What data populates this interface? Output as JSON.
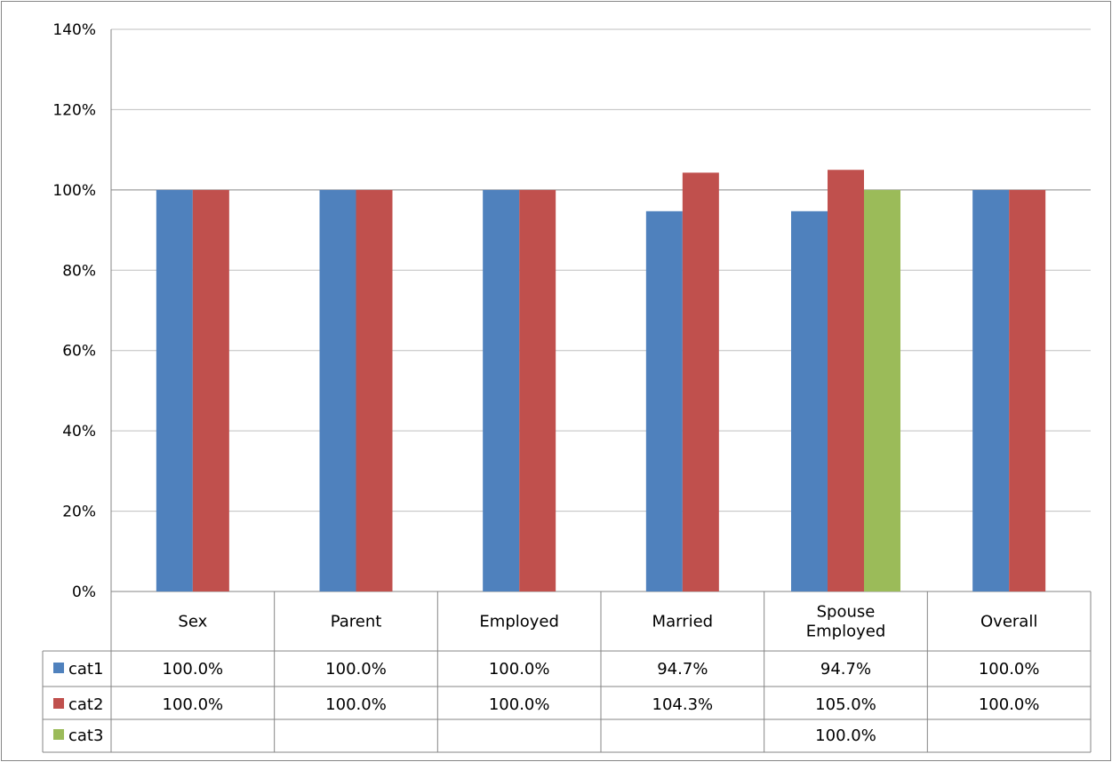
{
  "chart_data": {
    "type": "bar",
    "categories": [
      "Sex",
      "Parent",
      "Employed",
      "Married",
      "Spouse Employed",
      "Overall"
    ],
    "category_lines": [
      [
        "Sex"
      ],
      [
        "Parent"
      ],
      [
        "Employed"
      ],
      [
        "Married"
      ],
      [
        "Spouse",
        "Employed"
      ],
      [
        "Overall"
      ]
    ],
    "series": [
      {
        "name": "cat1",
        "color": "#4f81bd",
        "values": [
          100.0,
          100.0,
          100.0,
          94.7,
          94.7,
          100.0
        ],
        "labels": [
          "100.0%",
          "100.0%",
          "100.0%",
          "94.7%",
          "94.7%",
          "100.0%"
        ]
      },
      {
        "name": "cat2",
        "color": "#c0504d",
        "values": [
          100.0,
          100.0,
          100.0,
          104.3,
          105.0,
          100.0
        ],
        "labels": [
          "100.0%",
          "100.0%",
          "100.0%",
          "104.3%",
          "105.0%",
          "100.0%"
        ]
      },
      {
        "name": "cat3",
        "color": "#9bbb59",
        "values": [
          null,
          null,
          null,
          null,
          100.0,
          null
        ],
        "labels": [
          "",
          "",
          "",
          "",
          "100.0%",
          ""
        ]
      }
    ],
    "yticks": [
      "0%",
      "20%",
      "40%",
      "60%",
      "80%",
      "100%",
      "120%",
      "140%"
    ],
    "ylim": [
      0,
      140
    ],
    "ystep": 20,
    "grid": true,
    "legend": "data-table",
    "title": "",
    "xlabel": "",
    "ylabel": ""
  }
}
